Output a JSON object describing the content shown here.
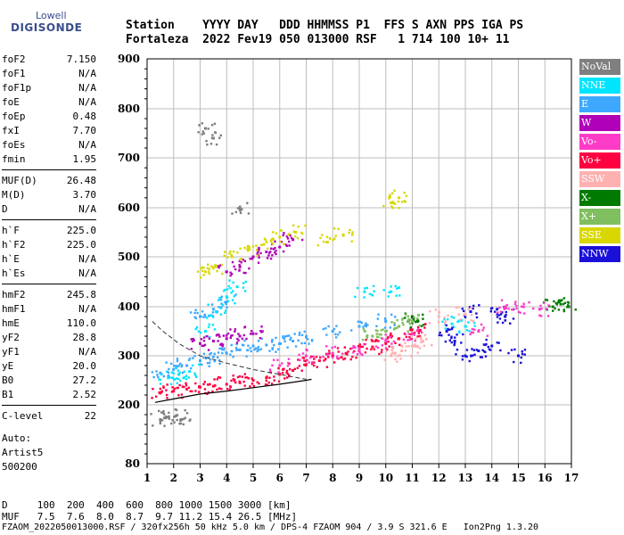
{
  "logo": {
    "line1": "Lowell",
    "line2": "DIGISONDE"
  },
  "header": {
    "labels": "Station    YYYY DAY   DDD HHMMSS P1  FFS S AXN PPS IGA PS",
    "values": "Fortaleza  2022 Fev19 050 013000 RSF   1 714 100 10+ 11"
  },
  "params": [
    {
      "k": "foF2",
      "v": "7.150"
    },
    {
      "k": "foF1",
      "v": "N/A"
    },
    {
      "k": "foF1p",
      "v": "N/A"
    },
    {
      "k": "foE",
      "v": "N/A"
    },
    {
      "k": "foEp",
      "v": "0.48"
    },
    {
      "k": "fxI",
      "v": "7.70"
    },
    {
      "k": "foEs",
      "v": "N/A"
    },
    {
      "k": "fmin",
      "v": "1.95"
    },
    {
      "k": "MUF(D)",
      "v": "26.48"
    },
    {
      "k": "M(D)",
      "v": "3.70"
    },
    {
      "k": "D",
      "v": "N/A"
    },
    {
      "k": "h`F",
      "v": "225.0"
    },
    {
      "k": "h`F2",
      "v": "225.0"
    },
    {
      "k": "h`E",
      "v": "N/A"
    },
    {
      "k": "h`Es",
      "v": "N/A"
    },
    {
      "k": "hmF2",
      "v": "245.8"
    },
    {
      "k": "hmF1",
      "v": "N/A"
    },
    {
      "k": "hmE",
      "v": "110.0"
    },
    {
      "k": "yF2",
      "v": "28.8"
    },
    {
      "k": "yF1",
      "v": "N/A"
    },
    {
      "k": "yE",
      "v": "20.0"
    },
    {
      "k": "B0",
      "v": "27.2"
    },
    {
      "k": "B1",
      "v": "2.52"
    },
    {
      "k": "C-level",
      "v": "22"
    }
  ],
  "auto": {
    "l1": "Auto:",
    "l2": "Artist5",
    "l3": "500200"
  },
  "legend": [
    {
      "label": "NoVal",
      "color": "#7f7f7f"
    },
    {
      "label": "NNE",
      "color": "#00e5ff"
    },
    {
      "label": "E",
      "color": "#3ea8ff"
    },
    {
      "label": "W",
      "color": "#b000b8"
    },
    {
      "label": "Vo-",
      "color": "#ff3cc8"
    },
    {
      "label": "Vo+",
      "color": "#ff0040"
    },
    {
      "label": "SSW",
      "color": "#ffb0b0"
    },
    {
      "label": "X-",
      "color": "#007a00"
    },
    {
      "label": "X+",
      "color": "#7fbf5f"
    },
    {
      "label": "SSE",
      "color": "#d8d800"
    },
    {
      "label": "NNW",
      "color": "#1a10d8"
    }
  ],
  "bottom": {
    "d_line": "D     100  200  400  600  800 1000 1500 3000 [km]",
    "muf_line": "MUF   7.5  7.6  8.0  8.7  9.7 11.2 15.4 26.5 [MHz]",
    "info_line": "FZAOM_2022050013000.RSF / 320fx256h 50 kHz 5.0 km / DPS-4 FZAOM 904 / 3.9 S 321.6 E   Ion2Png 1.3.20"
  },
  "chart_data": {
    "type": "scatter",
    "xlim": [
      1,
      17
    ],
    "ylim": [
      80,
      900
    ],
    "x_ticks": [
      1,
      2,
      3,
      4,
      5,
      6,
      7,
      8,
      9,
      10,
      11,
      12,
      13,
      14,
      15,
      16,
      17
    ],
    "y_ticks": [
      80,
      200,
      300,
      400,
      500,
      600,
      700,
      800,
      900
    ],
    "x_tick_labels": [
      "1",
      "2",
      "3",
      "4",
      "5",
      "6",
      "7",
      "8",
      "9",
      "10",
      "11",
      "12",
      "13",
      "14",
      "15",
      "16",
      "17"
    ],
    "y_tick_labels": [
      "80",
      "200",
      "300",
      "400",
      "500",
      "600",
      "700",
      "800",
      "900"
    ],
    "grid": true,
    "legend_position": "right",
    "series": [
      {
        "name": "Vo+",
        "color": "#ff0040",
        "points": [
          [
            1.5,
            225
          ],
          [
            2,
            228
          ],
          [
            2.5,
            232
          ],
          [
            3,
            236
          ],
          [
            3.5,
            238
          ],
          [
            4,
            242
          ],
          [
            4.5,
            245
          ],
          [
            5,
            250
          ],
          [
            5.5,
            255
          ],
          [
            6,
            262
          ],
          [
            6.5,
            270
          ],
          [
            7,
            282
          ],
          [
            7.5,
            290
          ],
          [
            8,
            300
          ],
          [
            8.5,
            305
          ],
          [
            9,
            310
          ],
          [
            9.5,
            318
          ],
          [
            10,
            325
          ],
          [
            10.5,
            335
          ],
          [
            11,
            345
          ],
          [
            11.3,
            352
          ]
        ]
      },
      {
        "name": "E",
        "color": "#3ea8ff",
        "points": [
          [
            1.5,
            265
          ],
          [
            2,
            272
          ],
          [
            2.5,
            280
          ],
          [
            3,
            290
          ],
          [
            3.5,
            298
          ],
          [
            4,
            305
          ],
          [
            4.5,
            312
          ],
          [
            5,
            320
          ],
          [
            5.5,
            322
          ],
          [
            6,
            325
          ],
          [
            6.5,
            330
          ],
          [
            7,
            338
          ],
          [
            8,
            350
          ],
          [
            9,
            360
          ],
          [
            10,
            370
          ],
          [
            3,
            380
          ],
          [
            3.5,
            395
          ],
          [
            4,
            410
          ]
        ]
      },
      {
        "name": "NNE",
        "color": "#00e5ff",
        "points": [
          [
            1.8,
            255
          ],
          [
            2.2,
            262
          ],
          [
            2.6,
            268
          ],
          [
            3.2,
            350
          ],
          [
            3.6,
            390
          ],
          [
            4,
            420
          ],
          [
            4.4,
            440
          ],
          [
            9.2,
            430
          ],
          [
            10.2,
            430
          ],
          [
            12.5,
            365
          ],
          [
            13,
            360
          ]
        ]
      },
      {
        "name": "W",
        "color": "#b000b8",
        "points": [
          [
            4,
            470
          ],
          [
            4.5,
            480
          ],
          [
            5,
            500
          ],
          [
            5.5,
            510
          ],
          [
            6,
            520
          ],
          [
            6.5,
            535
          ],
          [
            3,
            325
          ],
          [
            3.5,
            330
          ],
          [
            4,
            335
          ],
          [
            4.5,
            340
          ],
          [
            5,
            345
          ]
        ]
      },
      {
        "name": "SSE",
        "color": "#d8d800",
        "points": [
          [
            3.2,
            470
          ],
          [
            3.6,
            480
          ],
          [
            4.2,
            500
          ],
          [
            4.8,
            515
          ],
          [
            5.4,
            525
          ],
          [
            6,
            540
          ],
          [
            6.6,
            550
          ],
          [
            7.8,
            530
          ],
          [
            8.4,
            545
          ],
          [
            10.2,
            610
          ],
          [
            10.5,
            620
          ]
        ]
      },
      {
        "name": "NNW",
        "color": "#1a10d8",
        "points": [
          [
            12.3,
            350
          ],
          [
            12.6,
            330
          ],
          [
            13,
            300
          ],
          [
            13.5,
            310
          ],
          [
            14,
            320
          ],
          [
            14.5,
            380
          ],
          [
            15,
            300
          ],
          [
            13.2,
            390
          ],
          [
            14.2,
            395
          ]
        ]
      },
      {
        "name": "X-",
        "color": "#007a00",
        "points": [
          [
            16.3,
            400
          ],
          [
            16.6,
            405
          ],
          [
            16.9,
            400
          ],
          [
            11,
            380
          ],
          [
            11.2,
            370
          ]
        ]
      },
      {
        "name": "X+",
        "color": "#7fbf5f",
        "points": [
          [
            9.5,
            340
          ],
          [
            10,
            350
          ],
          [
            10.5,
            360
          ],
          [
            11,
            370
          ]
        ]
      },
      {
        "name": "SSW",
        "color": "#ffb0b0",
        "points": [
          [
            10.2,
            300
          ],
          [
            10.6,
            310
          ],
          [
            11,
            320
          ],
          [
            11.4,
            330
          ],
          [
            12,
            380
          ],
          [
            13,
            385
          ]
        ]
      },
      {
        "name": "Vo-",
        "color": "#ff3cc8",
        "points": [
          [
            6,
            280
          ],
          [
            7,
            300
          ],
          [
            8,
            305
          ],
          [
            9,
            315
          ],
          [
            10,
            330
          ],
          [
            11,
            345
          ],
          [
            13.5,
            350
          ],
          [
            14.5,
            400
          ],
          [
            15.2,
            400
          ],
          [
            15.8,
            395
          ]
        ]
      },
      {
        "name": "NoVal",
        "color": "#7f7f7f",
        "points": [
          [
            1.5,
            170
          ],
          [
            1.8,
            175
          ],
          [
            2.1,
            178
          ],
          [
            2.3,
            170
          ],
          [
            3.2,
            760
          ],
          [
            3.5,
            740
          ],
          [
            4.5,
            600
          ]
        ]
      }
    ],
    "profile_curve": {
      "color": "#000000",
      "points": [
        [
          1.3,
          205
        ],
        [
          2,
          212
        ],
        [
          3,
          222
        ],
        [
          4,
          228
        ],
        [
          5,
          235
        ],
        [
          6,
          242
        ],
        [
          7,
          250
        ],
        [
          7.2,
          252
        ]
      ]
    },
    "dashed_curve": {
      "color": "#333333",
      "points": [
        [
          1.2,
          370
        ],
        [
          1.6,
          350
        ],
        [
          2.2,
          325
        ],
        [
          3,
          300
        ],
        [
          4,
          285
        ],
        [
          5,
          272
        ],
        [
          6,
          262
        ],
        [
          7,
          252
        ]
      ]
    }
  }
}
